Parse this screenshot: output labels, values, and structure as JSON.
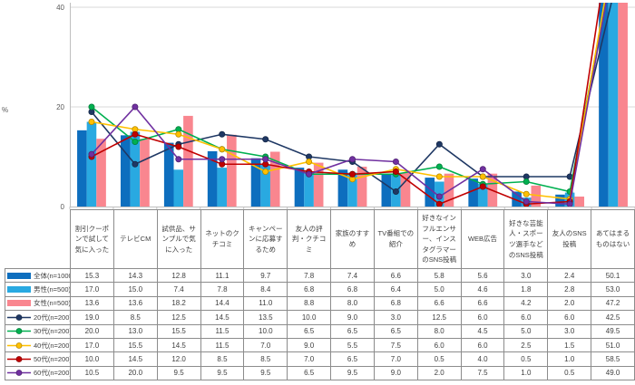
{
  "chart_data": {
    "type": "bar",
    "subtype": "grouped-bar-with-line-overlay-combo",
    "title": "",
    "xlabel": "",
    "ylabel": "%",
    "ylim": [
      0,
      40
    ],
    "yticks": [
      0,
      20,
      40
    ],
    "grid": "horizontal-on",
    "legend_position": "table-left-column",
    "categories": [
      "割引クーポンで試して気に入った",
      "テレビCM",
      "試供品、サンプルで気に入った",
      "ネットのクチコミ",
      "キャンペーンに応募するため",
      "友人の評判・クチコミ",
      "家族のすすめ",
      "TV番組での紹介",
      "好きなインフルエンサー、インスタグラマーのSNS投稿",
      "WEB広告",
      "好きな芸能人・スポーツ選手などのSNS投稿",
      "友人のSNS投稿",
      "あてはまるものはない"
    ],
    "series": [
      {
        "name": "全体(n=1000)",
        "type": "bar",
        "color": "#0D6EBE",
        "values": [
          15.3,
          14.3,
          12.8,
          11.1,
          9.7,
          7.8,
          7.4,
          6.6,
          5.8,
          5.6,
          3.0,
          2.4,
          50.1
        ]
      },
      {
        "name": "男性(n=500)",
        "type": "bar",
        "color": "#29A9E1",
        "values": [
          17.0,
          15.0,
          7.4,
          7.8,
          8.4,
          6.8,
          6.8,
          6.4,
          5.0,
          4.6,
          1.8,
          2.8,
          53.0
        ]
      },
      {
        "name": "女性(n=500)",
        "type": "bar",
        "color": "#F9868F",
        "values": [
          13.6,
          13.6,
          18.2,
          14.4,
          11.0,
          8.8,
          8.0,
          6.8,
          6.6,
          6.6,
          4.2,
          2.0,
          47.2
        ]
      },
      {
        "name": "20代(n=200)",
        "type": "line",
        "color": "#1F3864",
        "values": [
          19.0,
          8.5,
          12.5,
          14.5,
          13.5,
          10.0,
          9.0,
          3.0,
          12.5,
          6.0,
          6.0,
          6.0,
          42.5
        ]
      },
      {
        "name": "30代(n=200)",
        "type": "line",
        "color": "#00B050",
        "values": [
          20.0,
          13.0,
          15.5,
          11.5,
          10.0,
          6.5,
          6.5,
          6.5,
          8.0,
          4.5,
          5.0,
          3.0,
          49.5
        ]
      },
      {
        "name": "40代(n=200)",
        "type": "line",
        "color": "#FFC000",
        "values": [
          17.0,
          15.5,
          14.5,
          11.5,
          7.0,
          9.0,
          5.5,
          7.5,
          6.0,
          6.0,
          2.5,
          1.5,
          51.0
        ]
      },
      {
        "name": "50代(n=200)",
        "type": "line",
        "color": "#C00000",
        "values": [
          10.0,
          14.5,
          12.0,
          8.5,
          8.5,
          7.0,
          6.5,
          7.0,
          0.5,
          4.0,
          0.5,
          1.0,
          58.5
        ]
      },
      {
        "name": "60代(n=200)",
        "type": "line",
        "color": "#7030A0",
        "values": [
          10.5,
          20.0,
          9.5,
          9.5,
          9.5,
          6.5,
          9.5,
          9.0,
          2.0,
          7.5,
          1.0,
          0.5,
          49.0
        ]
      }
    ]
  },
  "axis": {
    "percent_label": "%",
    "tick_labels": [
      "0",
      "20",
      "40"
    ]
  }
}
